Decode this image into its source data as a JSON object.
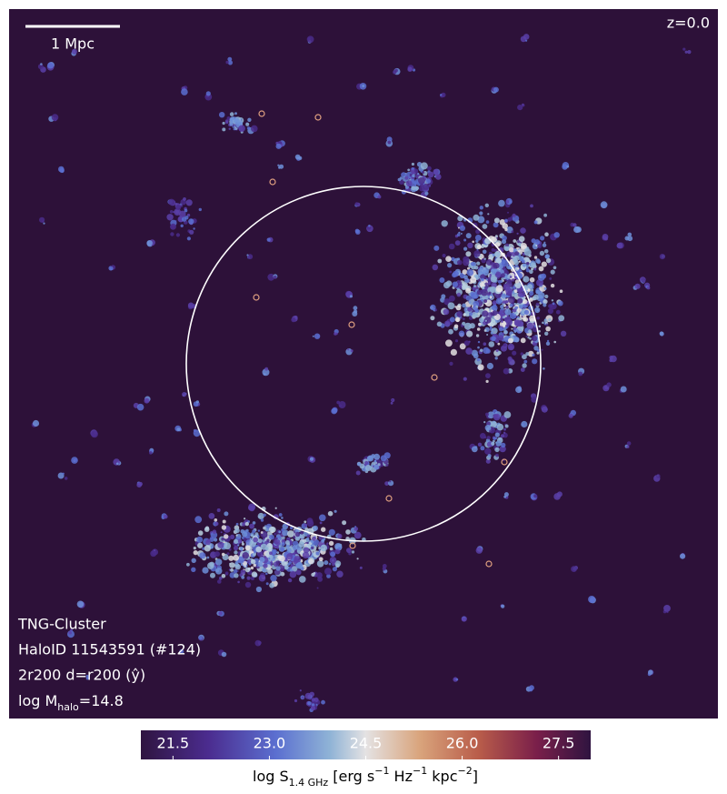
{
  "image": {
    "redshift": "z=0.0",
    "scale_bar": "1 Mpc",
    "annotations": [
      "TNG-Cluster",
      "HaloID 11543591 (#124)",
      "2r200 d=r200 (ŷ)"
    ],
    "mass_label": [
      {
        "text": "log M"
      },
      {
        "text": "halo",
        "shift": "sub"
      },
      {
        "text": "=14.8"
      }
    ]
  },
  "colorbar": {
    "clim": [
      21,
      28
    ],
    "ticks": [
      21.5,
      {
        "value": 23,
        "label": "23.0"
      },
      24.5,
      {
        "value": 26,
        "label": "26.0"
      },
      27.5
    ],
    "label_parts": [
      {
        "text": "log S"
      },
      {
        "text": "1.4 GHz",
        "shift": "sub"
      },
      {
        "text": " [erg s"
      },
      {
        "text": "−1",
        "shift": "sup"
      },
      {
        "text": " Hz"
      },
      {
        "text": "−1",
        "shift": "sup"
      },
      {
        "text": " kpc"
      },
      {
        "text": "−2",
        "shift": "sup"
      },
      {
        "text": "]"
      }
    ]
  }
}
